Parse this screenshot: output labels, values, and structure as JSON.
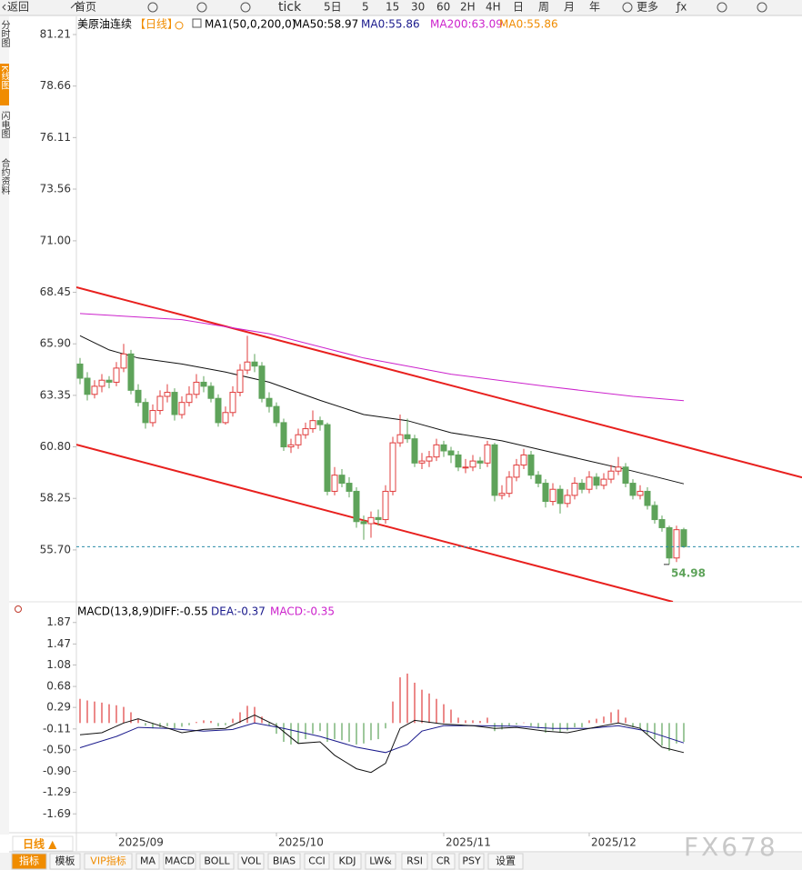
{
  "toolbar": [
    "返回",
    "首页",
    "tick",
    "5日",
    "5",
    "15",
    "30",
    "60",
    "2H",
    "4H",
    "日",
    "周",
    "月",
    "年",
    "更多",
    "ƒx"
  ],
  "sidebar": [
    "分时图",
    "K线图",
    "闪电图",
    "合约资料"
  ],
  "chart_data": {
    "type": "candlestick",
    "title": "美原油连续",
    "period": "【日线】",
    "indicator_labels": [
      "MA1(50,0,200,0)",
      "MA50:58.97",
      "MA0:55.86",
      "MA200:63.09",
      "MA0:55.86"
    ],
    "indicator_colors": [
      "#000000",
      "#000000",
      "#1a1a8c",
      "#cc22cc",
      "#f08c00"
    ],
    "up_color": "#e03c3c",
    "down_color": "#5ea35a",
    "price_line_color": "#2a8ca8",
    "categories": [
      null,
      null,
      null,
      null,
      null,
      "2025/09",
      null,
      null,
      null,
      null,
      null,
      null,
      null,
      null,
      null,
      null,
      null,
      null,
      null,
      null,
      null,
      null,
      null,
      null,
      null,
      null,
      null,
      "2025/10",
      null,
      null,
      null,
      null,
      null,
      null,
      null,
      null,
      null,
      null,
      null,
      null,
      null,
      null,
      null,
      null,
      null,
      null,
      null,
      null,
      null,
      null,
      "2025/11",
      null,
      null,
      null,
      null,
      null,
      null,
      null,
      null,
      null,
      null,
      null,
      null,
      null,
      null,
      null,
      null,
      null,
      null,
      null,
      "2025/12",
      null,
      null,
      null,
      null,
      null,
      null,
      null,
      null,
      null,
      null,
      null,
      null,
      null
    ],
    "candles": [
      [
        64.9,
        65.2,
        63.9,
        64.2
      ],
      [
        64.2,
        64.5,
        63.1,
        63.4
      ],
      [
        63.4,
        64.1,
        63.2,
        63.8
      ],
      [
        63.8,
        64.4,
        63.5,
        64.1
      ],
      [
        64.1,
        64.3,
        63.7,
        64.0
      ],
      [
        64.0,
        65.0,
        63.8,
        64.7
      ],
      [
        64.7,
        65.9,
        64.5,
        65.4
      ],
      [
        65.4,
        65.6,
        63.4,
        63.6
      ],
      [
        63.6,
        63.9,
        62.8,
        63.0
      ],
      [
        63.0,
        63.2,
        61.7,
        62.0
      ],
      [
        62.0,
        62.9,
        61.8,
        62.6
      ],
      [
        62.6,
        63.6,
        62.4,
        63.3
      ],
      [
        63.3,
        63.9,
        63.0,
        63.5
      ],
      [
        63.5,
        63.7,
        62.1,
        62.4
      ],
      [
        62.4,
        63.3,
        62.2,
        63.0
      ],
      [
        63.0,
        63.8,
        62.8,
        63.4
      ],
      [
        63.4,
        64.4,
        63.2,
        64.0
      ],
      [
        64.0,
        64.3,
        63.5,
        63.8
      ],
      [
        63.8,
        64.0,
        63.0,
        63.2
      ],
      [
        63.2,
        63.4,
        61.8,
        62.0
      ],
      [
        62.0,
        62.8,
        61.9,
        62.5
      ],
      [
        62.5,
        63.8,
        62.3,
        63.5
      ],
      [
        63.5,
        64.9,
        63.3,
        64.6
      ],
      [
        64.6,
        66.3,
        64.4,
        65.0
      ],
      [
        65.0,
        65.4,
        64.5,
        64.8
      ],
      [
        64.8,
        65.0,
        63.0,
        63.2
      ],
      [
        63.2,
        63.5,
        62.5,
        62.8
      ],
      [
        62.8,
        63.0,
        61.8,
        62.0
      ],
      [
        62.0,
        62.2,
        60.6,
        60.8
      ],
      [
        60.8,
        61.2,
        60.5,
        60.9
      ],
      [
        60.9,
        61.7,
        60.7,
        61.4
      ],
      [
        61.4,
        62.0,
        61.2,
        61.7
      ],
      [
        61.7,
        62.6,
        61.5,
        62.1
      ],
      [
        62.1,
        62.3,
        61.6,
        61.9
      ],
      [
        61.9,
        62.0,
        58.4,
        58.6
      ],
      [
        58.6,
        59.8,
        58.4,
        59.4
      ],
      [
        59.4,
        59.7,
        58.8,
        59.0
      ],
      [
        59.0,
        59.3,
        58.3,
        58.6
      ],
      [
        58.6,
        58.8,
        56.8,
        57.1
      ],
      [
        57.1,
        57.4,
        56.2,
        57.0
      ],
      [
        57.0,
        57.6,
        56.3,
        57.3
      ],
      [
        57.3,
        57.7,
        56.9,
        57.2
      ],
      [
        57.2,
        58.9,
        57.0,
        58.6
      ],
      [
        58.6,
        61.3,
        58.4,
        61.0
      ],
      [
        61.0,
        62.4,
        60.8,
        61.4
      ],
      [
        61.4,
        62.2,
        61.0,
        61.2
      ],
      [
        61.2,
        61.4,
        59.8,
        60.0
      ],
      [
        60.0,
        60.5,
        59.7,
        60.1
      ],
      [
        60.1,
        60.6,
        59.8,
        60.3
      ],
      [
        60.3,
        61.2,
        60.1,
        60.9
      ],
      [
        60.9,
        61.1,
        60.3,
        60.6
      ],
      [
        60.6,
        60.8,
        60.0,
        60.4
      ],
      [
        60.4,
        60.6,
        59.6,
        59.8
      ],
      [
        59.8,
        60.2,
        59.5,
        59.8
      ],
      [
        59.8,
        60.4,
        59.6,
        60.1
      ],
      [
        60.1,
        60.3,
        59.7,
        60.0
      ],
      [
        60.0,
        61.1,
        59.8,
        60.9
      ],
      [
        60.9,
        61.0,
        58.1,
        58.4
      ],
      [
        58.4,
        58.9,
        58.2,
        58.5
      ],
      [
        58.5,
        59.6,
        58.3,
        59.3
      ],
      [
        59.3,
        60.2,
        59.1,
        59.9
      ],
      [
        59.9,
        60.7,
        59.7,
        60.4
      ],
      [
        60.4,
        60.6,
        59.2,
        59.4
      ],
      [
        59.4,
        59.6,
        58.8,
        59.0
      ],
      [
        59.0,
        59.2,
        57.8,
        58.1
      ],
      [
        58.1,
        59.0,
        57.9,
        58.7
      ],
      [
        58.7,
        58.9,
        57.5,
        58.0
      ],
      [
        58.0,
        58.7,
        57.8,
        58.4
      ],
      [
        58.4,
        59.3,
        58.2,
        59.0
      ],
      [
        59.0,
        59.2,
        58.5,
        58.7
      ],
      [
        58.7,
        59.6,
        58.5,
        59.3
      ],
      [
        59.3,
        59.5,
        58.7,
        58.9
      ],
      [
        58.9,
        59.5,
        58.7,
        59.2
      ],
      [
        59.2,
        59.9,
        59.0,
        59.6
      ],
      [
        59.6,
        60.3,
        59.4,
        59.8
      ],
      [
        59.8,
        60.0,
        58.8,
        59.0
      ],
      [
        59.0,
        59.2,
        58.2,
        58.4
      ],
      [
        58.4,
        58.9,
        58.2,
        58.6
      ],
      [
        58.6,
        58.8,
        57.7,
        57.9
      ],
      [
        57.9,
        58.1,
        57.0,
        57.2
      ],
      [
        57.2,
        57.4,
        56.6,
        56.8
      ],
      [
        56.8,
        56.9,
        54.98,
        55.3
      ],
      [
        55.3,
        56.9,
        55.1,
        56.7
      ],
      [
        56.7,
        56.8,
        55.8,
        55.86
      ]
    ],
    "ylim": [
      53.13,
      82.11
    ],
    "yticks": [
      81.21,
      78.66,
      76.11,
      73.56,
      {
        "value": 71,
        "label": "71.00"
      },
      68.45,
      {
        "value": 65.9,
        "label": "65.90"
      },
      63.35,
      {
        "value": 60.8,
        "label": "60.80"
      },
      58.25,
      {
        "value": 55.7,
        "label": "55.70"
      }
    ],
    "grid": false,
    "lines": [
      {
        "color": "#111111",
        "x": [
          0,
          4,
          8,
          14,
          20,
          26,
          33,
          39,
          45,
          51,
          58,
          64,
          70,
          76,
          83
        ],
        "values": [
          66.3,
          65.6,
          65.2,
          64.9,
          64.5,
          64.0,
          63.1,
          62.4,
          62.1,
          61.5,
          61.1,
          60.6,
          60.1,
          59.6,
          58.97
        ]
      },
      {
        "color": "#cc22cc",
        "x": [
          0,
          14,
          26,
          39,
          51,
          64,
          76,
          83
        ],
        "values": [
          67.4,
          67.1,
          66.4,
          65.2,
          64.4,
          63.8,
          63.3,
          63.09
        ]
      }
    ],
    "trendlines": [
      {
        "color": "#e8201e",
        "x": [
          -0.5,
          99.25
        ],
        "values": [
          68.7,
          59.29
        ]
      },
      {
        "color": "#e8201e",
        "x": [
          -0.5,
          81.5
        ],
        "values": [
          60.91,
          53.13
        ]
      }
    ],
    "macd": {
      "labels": [
        "MACD(13,8,9)",
        "DIFF:-0.55",
        "DEA:-0.37",
        "MACD:-0.35"
      ],
      "label_colors": [
        "#000000",
        "#000000",
        "#1a1a8c",
        "#cc22cc"
      ],
      "ylim": [
        -2.024,
        2.204
      ],
      "yticks": [
        1.87,
        1.47,
        1.08,
        0.68,
        0.29,
        -0.11,
        {
          "value": -0.5,
          "label": "-0.50"
        },
        {
          "value": -0.9,
          "label": "-0.90"
        },
        -1.29,
        -1.69
      ],
      "histogram": [
        0.45,
        0.42,
        0.4,
        0.38,
        0.35,
        0.33,
        0.3,
        0.2,
        0.08,
        -0.05,
        -0.1,
        -0.08,
        -0.06,
        -0.1,
        -0.07,
        -0.04,
        0.02,
        0.05,
        0.04,
        -0.06,
        -0.04,
        0.08,
        0.2,
        0.32,
        0.3,
        0.12,
        -0.05,
        -0.2,
        -0.35,
        -0.4,
        -0.38,
        -0.3,
        -0.2,
        -0.15,
        -0.35,
        -0.3,
        -0.32,
        -0.35,
        -0.4,
        -0.38,
        -0.32,
        -0.3,
        -0.1,
        0.4,
        0.85,
        0.92,
        0.75,
        0.62,
        0.55,
        0.45,
        0.35,
        0.25,
        0.1,
        0.05,
        0.05,
        0.04,
        0.1,
        -0.15,
        -0.12,
        -0.05,
        -0.03,
        0.01,
        -0.06,
        -0.1,
        -0.18,
        -0.14,
        -0.18,
        -0.14,
        -0.08,
        -0.08,
        0.05,
        0.08,
        0.12,
        0.2,
        0.25,
        0.1,
        -0.08,
        -0.1,
        -0.2,
        -0.3,
        -0.42,
        -0.52,
        -0.38,
        -0.35
      ],
      "diff": {
        "color": "#111111",
        "x": [
          0,
          3,
          6,
          8,
          11,
          14,
          17,
          20,
          24,
          27,
          30,
          33,
          35,
          38,
          40,
          42,
          44,
          46,
          50,
          54,
          57,
          60,
          64,
          67,
          70,
          74,
          77,
          80,
          83
        ],
        "values": [
          -0.22,
          -0.18,
          0.0,
          0.08,
          -0.05,
          -0.18,
          -0.12,
          -0.1,
          0.15,
          -0.05,
          -0.38,
          -0.35,
          -0.6,
          -0.85,
          -0.92,
          -0.75,
          -0.1,
          0.05,
          -0.02,
          -0.05,
          -0.1,
          -0.08,
          -0.15,
          -0.18,
          -0.1,
          0.0,
          -0.1,
          -0.45,
          -0.55
        ]
      },
      "dea": {
        "color": "#1a1a8c",
        "x": [
          0,
          5,
          8,
          12,
          17,
          21,
          24,
          28,
          33,
          38,
          42,
          45,
          47,
          50,
          55,
          60,
          65,
          70,
          74,
          78,
          83
        ],
        "values": [
          -0.46,
          -0.25,
          -0.08,
          -0.1,
          -0.15,
          -0.12,
          0.0,
          -0.1,
          -0.25,
          -0.45,
          -0.55,
          -0.4,
          -0.15,
          -0.05,
          -0.05,
          -0.06,
          -0.1,
          -0.1,
          -0.05,
          -0.15,
          -0.37
        ]
      },
      "up_color": "#e03c3c",
      "down_color": "#5ea35a"
    }
  },
  "footer": {
    "period_button": "日线 ▲",
    "tabs": [
      "指标",
      "模板",
      "VIP指标",
      "MA",
      "MACD",
      "BOLL",
      "VOL",
      "BIAS",
      "CCI",
      "KDJ",
      "LW&",
      "RSI",
      "CR",
      "PSY",
      "设置"
    ]
  },
  "watermark": "FX678"
}
